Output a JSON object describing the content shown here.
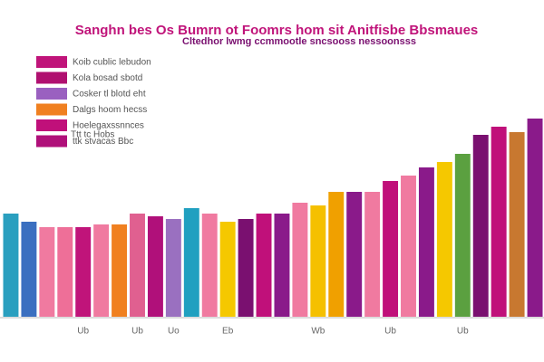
{
  "chart_data": {
    "type": "bar",
    "title": "Sanghn bes Os Bumrn ot Foomrs hom sit Anitfisbe Bbsmaues",
    "subtitle": "Cltedhor lwmg ccmmootle sncsooss nessoonsss",
    "legend": [
      {
        "label": "Koib cublic lebudon",
        "color": "#c0147a"
      },
      {
        "label": "Kola bosad sbotd",
        "color": "#b01070"
      },
      {
        "label": "Cosker tl blotd eht",
        "color": "#9a60c0"
      },
      {
        "label": "Dalgs hoom hecss",
        "color": "#f08020"
      },
      {
        "label": "Hoelegaxssnnces",
        "color": "#c0107a"
      },
      {
        "label": "ttk stvacas Bbc",
        "color": "#b0107a"
      }
    ],
    "note": "Ttt tc Hobs",
    "categories": [
      null,
      null,
      null,
      null,
      "Ub",
      null,
      null,
      "Ub",
      null,
      "Uo",
      null,
      null,
      "Eb",
      null,
      null,
      null,
      null,
      "Wb",
      null,
      null,
      null,
      "Ub",
      null,
      null,
      null,
      "Ub",
      null,
      null,
      null,
      null
    ],
    "values": [
      38,
      35,
      33,
      33,
      33,
      34,
      34,
      38,
      37,
      36,
      40,
      38,
      35,
      36,
      38,
      38,
      42,
      41,
      46,
      46,
      46,
      50,
      52,
      55,
      57,
      60,
      67,
      70,
      68,
      73
    ],
    "colors": [
      "#2a9fbf",
      "#3a6fc0",
      "#f07aa0",
      "#ee6f98",
      "#c0147a",
      "#f07aa0",
      "#f08020",
      "#e06090",
      "#b0107a",
      "#9a70c0",
      "#20a0c0",
      "#f07aa0",
      "#f5c800",
      "#7a1070",
      "#c0107a",
      "#8a1a8a",
      "#f07aa0",
      "#f5c000",
      "#f0a000",
      "#8a1a8a",
      "#f07aa0",
      "#c0107a",
      "#f07aa0",
      "#8a1a8a",
      "#f5c800",
      "#5ba040",
      "#7a1070",
      "#c0107a",
      "#c87830",
      "#8a1a8a"
    ],
    "ylim": [
      0,
      100
    ]
  }
}
